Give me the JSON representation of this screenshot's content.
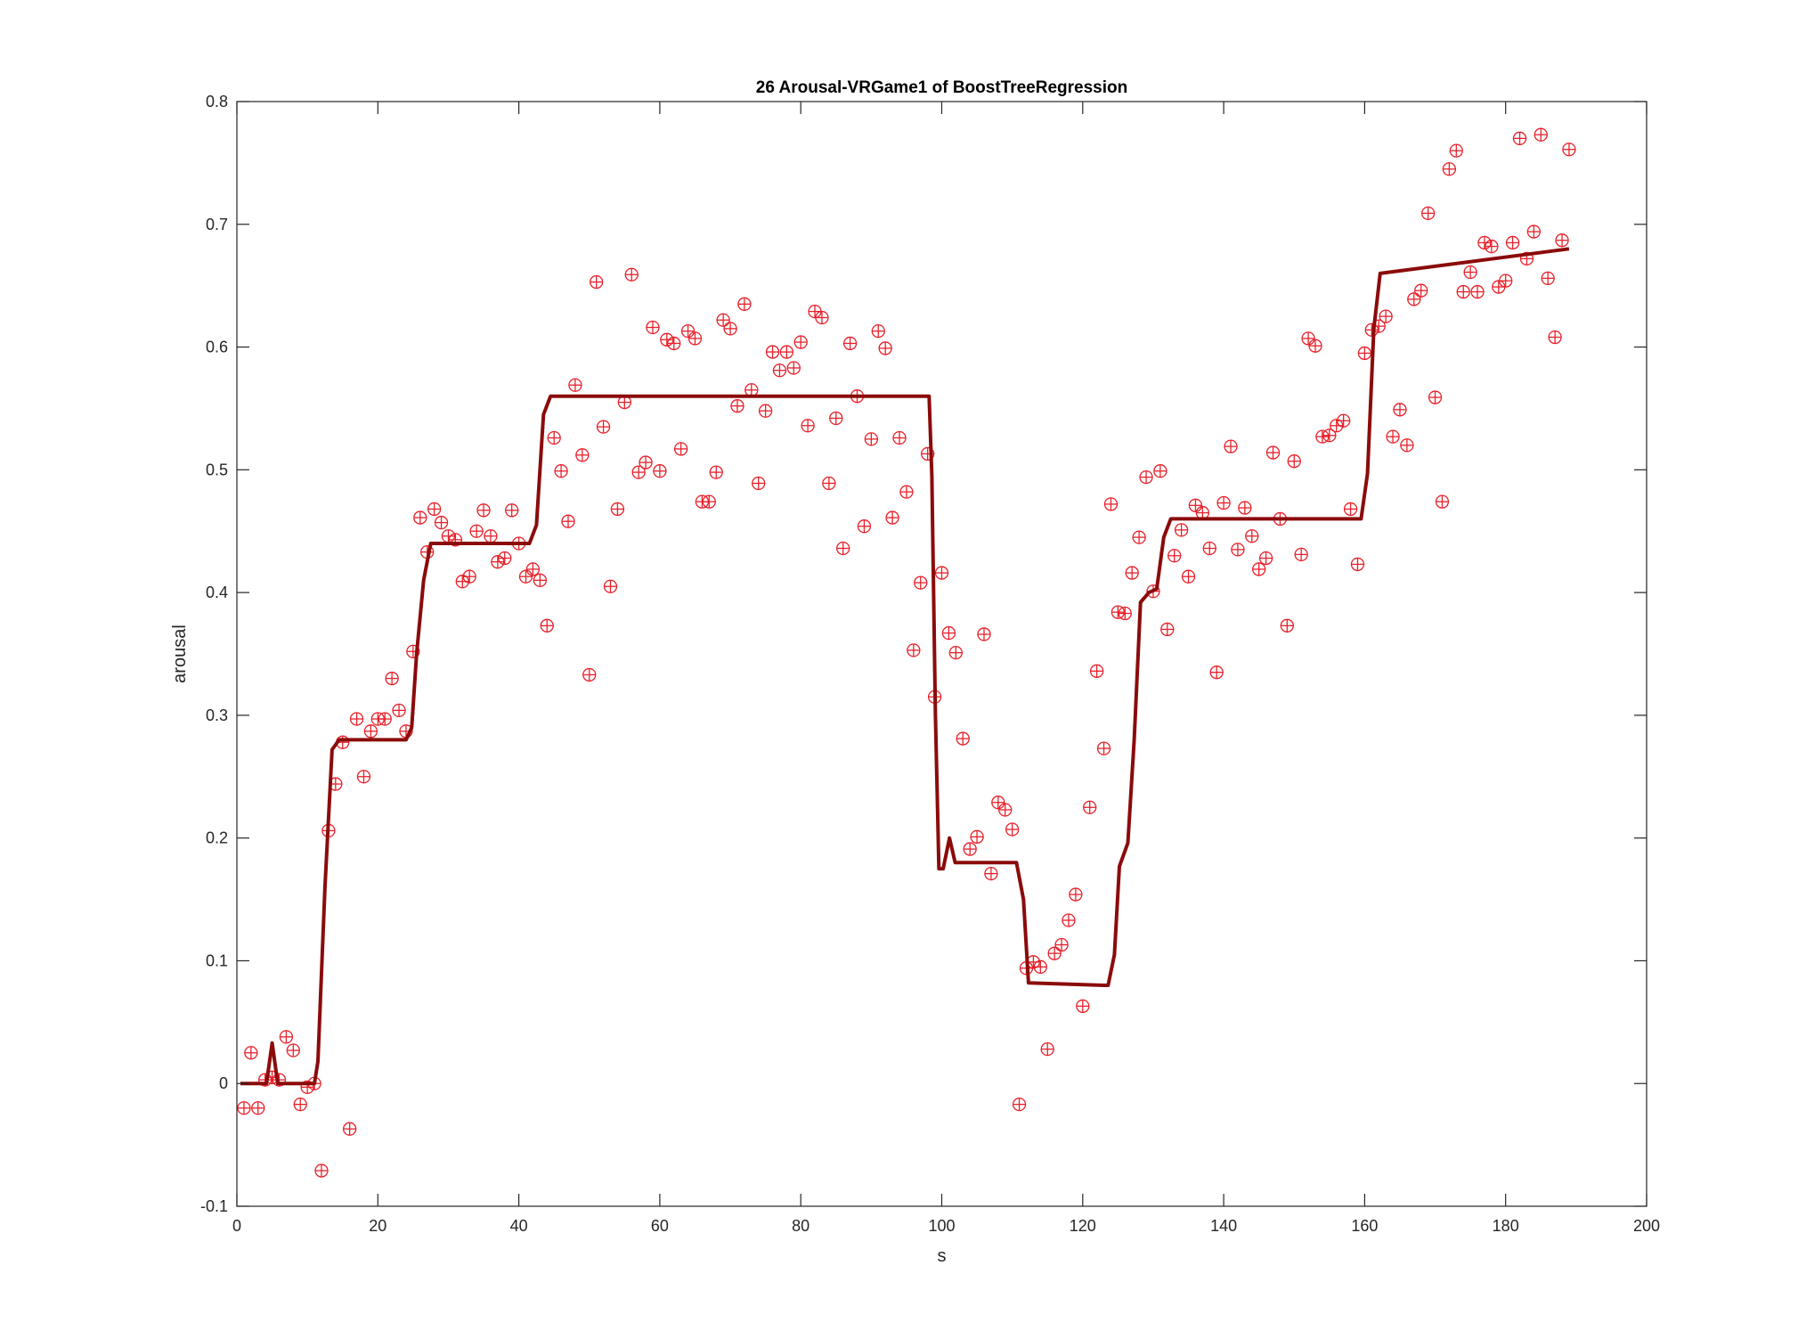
{
  "chart_data": {
    "type": "scatter",
    "title": "26 Arousal-VRGame1 of BoostTreeRegression",
    "xlabel": "s",
    "ylabel": "arousal",
    "xlim": [
      0,
      200
    ],
    "ylim": [
      -0.1,
      0.8
    ],
    "xticks": [
      0,
      20,
      40,
      60,
      80,
      100,
      120,
      140,
      160,
      180,
      200
    ],
    "yticks": [
      -0.1,
      0,
      0.1,
      0.2,
      0.3,
      0.4,
      0.5,
      0.6,
      0.7,
      0.8
    ],
    "xtick_labels": [
      "0",
      "20",
      "40",
      "60",
      "80",
      "100",
      "120",
      "140",
      "160",
      "180",
      "200"
    ],
    "ytick_labels": [
      "-0.1",
      "0",
      "0.1",
      "0.2",
      "0.3",
      "0.4",
      "0.5",
      "0.6",
      "0.7",
      "0.8"
    ],
    "grid": false,
    "series": [
      {
        "kind": "scatter",
        "marker": "circle-plus",
        "color": "#e8202a",
        "x": [
          1,
          2,
          3,
          4,
          5,
          6,
          7,
          8,
          9,
          10,
          11,
          12,
          13,
          14,
          15,
          16,
          17,
          18,
          19,
          20,
          21,
          22,
          23,
          24,
          25,
          26,
          27,
          28,
          29,
          30,
          31,
          32,
          33,
          34,
          35,
          36,
          37,
          38,
          39,
          40,
          41,
          42,
          43,
          44,
          45,
          46,
          47,
          48,
          49,
          50,
          51,
          52,
          53,
          54,
          55,
          56,
          57,
          58,
          59,
          60,
          61,
          62,
          63,
          64,
          65,
          66,
          67,
          68,
          69,
          70,
          71,
          72,
          73,
          74,
          75,
          76,
          77,
          78,
          79,
          80,
          81,
          82,
          83,
          84,
          85,
          86,
          87,
          88,
          89,
          90,
          91,
          92,
          93,
          94,
          95,
          96,
          97,
          98,
          99,
          100,
          101,
          102,
          103,
          104,
          105,
          106,
          107,
          108,
          109,
          110,
          111,
          112,
          113,
          114,
          115,
          116,
          117,
          118,
          119,
          120,
          121,
          122,
          123,
          124,
          125,
          126,
          127,
          128,
          129,
          130,
          131,
          132,
          133,
          134,
          135,
          136,
          137,
          138,
          139,
          140,
          141,
          142,
          143,
          144,
          145,
          146,
          147,
          148,
          149,
          150,
          151,
          152,
          153,
          154,
          155,
          156,
          157,
          158,
          159,
          160,
          161,
          162,
          163,
          164,
          165,
          166,
          167,
          168,
          169,
          170,
          171,
          172,
          173,
          174,
          175,
          176,
          177,
          178,
          179,
          180,
          181,
          182,
          183,
          184,
          185,
          186,
          187,
          188,
          189
        ],
        "y": [
          -0.02,
          0.025,
          -0.02,
          0.003,
          0.005,
          0.003,
          0.038,
          0.027,
          -0.017,
          -0.003,
          0.0,
          -0.071,
          0.206,
          0.244,
          0.278,
          -0.037,
          0.297,
          0.25,
          0.287,
          0.297,
          0.297,
          0.33,
          0.304,
          0.287,
          0.352,
          0.461,
          0.433,
          0.468,
          0.457,
          0.446,
          0.443,
          0.409,
          0.413,
          0.45,
          0.467,
          0.446,
          0.425,
          0.428,
          0.467,
          0.44,
          0.413,
          0.419,
          0.41,
          0.373,
          0.526,
          0.499,
          0.458,
          0.569,
          0.512,
          0.333,
          0.653,
          0.535,
          0.405,
          0.468,
          0.555,
          0.659,
          0.498,
          0.506,
          0.616,
          0.499,
          0.606,
          0.603,
          0.517,
          0.613,
          0.607,
          0.474,
          0.474,
          0.498,
          0.622,
          0.615,
          0.552,
          0.635,
          0.565,
          0.489,
          0.548,
          0.596,
          0.581,
          0.596,
          0.583,
          0.604,
          0.536,
          0.629,
          0.624,
          0.489,
          0.542,
          0.436,
          0.603,
          0.56,
          0.454,
          0.525,
          0.613,
          0.599,
          0.461,
          0.526,
          0.482,
          0.353,
          0.408,
          0.513,
          0.315,
          0.416,
          0.367,
          0.351,
          0.281,
          0.191,
          0.201,
          0.366,
          0.171,
          0.229,
          0.223,
          0.207,
          -0.017,
          0.094,
          0.099,
          0.095,
          0.028,
          0.106,
          0.113,
          0.133,
          0.154,
          0.063,
          0.225,
          0.336,
          0.273,
          0.472,
          0.384,
          0.383,
          0.416,
          0.445,
          0.494,
          0.401,
          0.499,
          0.37,
          0.43,
          0.451,
          0.413,
          0.471,
          0.465,
          0.436,
          0.335,
          0.473,
          0.519,
          0.435,
          0.469,
          0.446,
          0.419,
          0.428,
          0.514,
          0.46,
          0.373,
          0.507,
          0.431,
          0.607,
          0.601,
          0.527,
          0.528,
          0.536,
          0.54,
          0.468,
          0.423,
          0.595,
          0.614,
          0.617,
          0.625,
          0.527,
          0.549,
          0.52,
          0.639,
          0.646,
          0.709,
          0.559,
          0.474,
          0.745,
          0.76,
          0.645,
          0.661,
          0.645,
          0.685,
          0.682,
          0.649,
          0.654,
          0.685,
          0.77,
          0.672,
          0.694,
          0.773,
          0.656,
          0.608,
          0.687,
          0.761
        ]
      },
      {
        "kind": "line",
        "color": "#8b0b0b",
        "x": [
          0.5,
          4.2,
          5.0,
          5.8,
          11.0,
          11.5,
          12.5,
          13.5,
          14.5,
          24.0,
          24.8,
          25.5,
          26.5,
          27.5,
          40.5,
          41.5,
          42.5,
          43.5,
          44.5,
          98.2,
          98.6,
          99.1,
          99.6,
          100.2,
          101.1,
          101.9,
          110.0,
          110.6,
          111.6,
          112.3,
          123.0,
          123.6,
          124.5,
          125.2,
          126.4,
          127.3,
          128.2,
          129.4,
          130.5,
          131.5,
          132.5,
          159.5,
          160.4,
          161.3,
          162.2,
          189.0
        ],
        "y": [
          0.0,
          0.0,
          0.033,
          0.0,
          0.0,
          0.018,
          0.16,
          0.272,
          0.28,
          0.28,
          0.29,
          0.35,
          0.41,
          0.44,
          0.44,
          0.44,
          0.455,
          0.545,
          0.56,
          0.56,
          0.495,
          0.3,
          0.175,
          0.175,
          0.2,
          0.18,
          0.18,
          0.18,
          0.15,
          0.082,
          0.08,
          0.08,
          0.105,
          0.177,
          0.196,
          0.28,
          0.392,
          0.4,
          0.403,
          0.445,
          0.46,
          0.46,
          0.497,
          0.615,
          0.66,
          0.68
        ]
      }
    ]
  }
}
